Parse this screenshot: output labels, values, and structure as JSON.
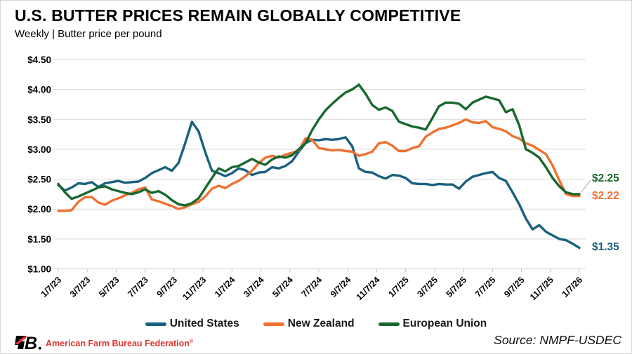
{
  "header": {
    "title": "U.S. BUTTER PRICES REMAIN GLOBALLY COMPETITIVE",
    "subtitle": "Weekly | Butter price per pound"
  },
  "legend": {
    "items": [
      {
        "label": "United States",
        "color_key": "us"
      },
      {
        "label": "New Zealand",
        "color_key": "nz"
      },
      {
        "label": "European Union",
        "color_key": "eu"
      }
    ]
  },
  "annotations": {
    "eu_end": "$2.25",
    "nz_end": "$2.22",
    "us_end": "$1.35"
  },
  "footer": {
    "logo_abbr": "FB",
    "logo_period": ".",
    "brand": "American Farm Bureau Federation",
    "registered_mark": "®",
    "source": "Source: NMPF-USDEC"
  },
  "colors": {
    "us": "#1a607f",
    "nz": "#ef7031",
    "eu": "#17682e",
    "grid": "#d8d8d8",
    "tick": "#c2c2c2",
    "axis_text": "#000000",
    "leader": "#a6a6a6",
    "brand_red": "#e0352f"
  },
  "chart_data": {
    "type": "line",
    "title": "U.S. BUTTER PRICES REMAIN GLOBALLY COMPETITIVE",
    "subtitle": "Weekly | Butter price per pound",
    "unit": "USD per pound, weekly",
    "grid": "horizontal",
    "legend_position": "bottom",
    "ylim": [
      1.0,
      4.5
    ],
    "y_tick_values": [
      4.5,
      4.0,
      3.5,
      3.0,
      2.5,
      2.0,
      1.5,
      1.0
    ],
    "y_tick_labels": [
      "$4.50",
      "$4.00",
      "$3.50",
      "$3.00",
      "$2.50",
      "$2.00",
      "$1.50",
      "$1.00"
    ],
    "x_tick_labels": [
      "1/7/23",
      "3/7/23",
      "5/7/23",
      "7/7/23",
      "9/7/23",
      "11/7/23",
      "1/7/24",
      "3/7/24",
      "5/7/24",
      "7/7/24",
      "9/7/24",
      "11/7/24",
      "1/7/25",
      "3/7/25",
      "5/7/25",
      "7/7/25",
      "9/7/25",
      "11/7/25",
      "1/7/26"
    ],
    "x_note": "series values are evenly spaced (bi-weekly) from 1/7/23 to 1/7/26",
    "series": [
      {
        "name": "United States",
        "color_key": "us",
        "end_label": "$1.35",
        "values": [
          2.4,
          2.31,
          2.36,
          2.43,
          2.42,
          2.45,
          2.37,
          2.43,
          2.45,
          2.47,
          2.44,
          2.45,
          2.46,
          2.52,
          2.6,
          2.65,
          2.7,
          2.64,
          2.77,
          3.1,
          3.46,
          3.3,
          2.95,
          2.64,
          2.6,
          2.55,
          2.6,
          2.68,
          2.65,
          2.57,
          2.61,
          2.62,
          2.7,
          2.68,
          2.72,
          2.8,
          2.96,
          3.1,
          3.16,
          3.15,
          3.17,
          3.16,
          3.17,
          3.2,
          3.05,
          2.68,
          2.62,
          2.61,
          2.55,
          2.51,
          2.57,
          2.56,
          2.52,
          2.43,
          2.42,
          2.42,
          2.4,
          2.42,
          2.41,
          2.41,
          2.34,
          2.46,
          2.54,
          2.57,
          2.6,
          2.62,
          2.52,
          2.47,
          2.28,
          2.08,
          1.84,
          1.66,
          1.73,
          1.62,
          1.56,
          1.5,
          1.48,
          1.42,
          1.35
        ]
      },
      {
        "name": "New Zealand",
        "color_key": "nz",
        "end_label": "$2.22",
        "values": [
          1.97,
          1.97,
          1.98,
          2.12,
          2.2,
          2.2,
          2.11,
          2.07,
          2.14,
          2.18,
          2.23,
          2.27,
          2.33,
          2.36,
          2.16,
          2.13,
          2.09,
          2.05,
          2.0,
          2.03,
          2.08,
          2.12,
          2.21,
          2.34,
          2.39,
          2.35,
          2.42,
          2.47,
          2.55,
          2.64,
          2.77,
          2.86,
          2.89,
          2.86,
          2.91,
          2.94,
          2.98,
          3.18,
          3.16,
          3.02,
          3.0,
          2.98,
          2.99,
          2.97,
          2.96,
          2.89,
          2.92,
          2.96,
          3.1,
          3.12,
          3.06,
          2.97,
          2.97,
          3.02,
          3.05,
          3.21,
          3.28,
          3.34,
          3.36,
          3.4,
          3.44,
          3.5,
          3.45,
          3.44,
          3.47,
          3.37,
          3.34,
          3.3,
          3.22,
          3.18,
          3.1,
          3.06,
          2.99,
          2.92,
          2.73,
          2.48,
          2.25,
          2.22,
          2.22
        ]
      },
      {
        "name": "European Union",
        "color_key": "eu",
        "end_label": "$2.25",
        "values": [
          2.42,
          2.28,
          2.17,
          2.21,
          2.26,
          2.31,
          2.36,
          2.38,
          2.33,
          2.3,
          2.27,
          2.25,
          2.28,
          2.33,
          2.27,
          2.3,
          2.24,
          2.15,
          2.08,
          2.06,
          2.1,
          2.18,
          2.35,
          2.52,
          2.68,
          2.63,
          2.7,
          2.72,
          2.78,
          2.84,
          2.78,
          2.74,
          2.83,
          2.88,
          2.86,
          2.9,
          3.0,
          3.1,
          3.32,
          3.5,
          3.65,
          3.76,
          3.86,
          3.95,
          4.0,
          4.08,
          3.93,
          3.74,
          3.66,
          3.7,
          3.64,
          3.46,
          3.42,
          3.38,
          3.36,
          3.33,
          3.52,
          3.72,
          3.78,
          3.78,
          3.76,
          3.67,
          3.78,
          3.83,
          3.88,
          3.85,
          3.82,
          3.62,
          3.67,
          3.4,
          3.0,
          2.94,
          2.86,
          2.7,
          2.52,
          2.38,
          2.28,
          2.25,
          2.25
        ]
      }
    ]
  }
}
